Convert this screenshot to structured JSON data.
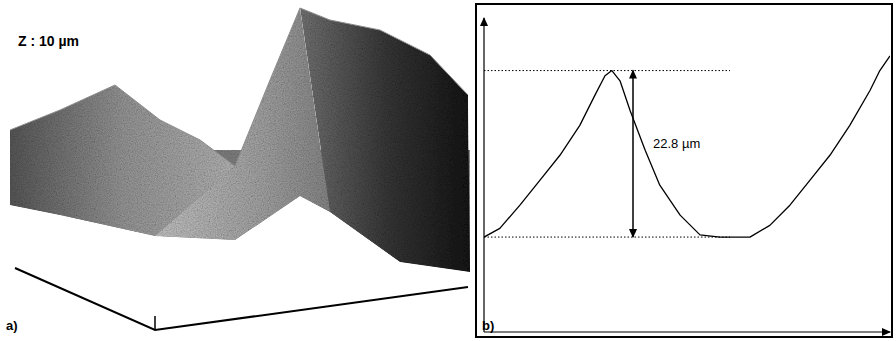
{
  "panel_a": {
    "panel_label": "a)",
    "z_label": "Z : 10 µm"
  },
  "chart_data": {
    "type": "line",
    "panel_label": "b)",
    "x": [
      0,
      3.9,
      8.9,
      13.8,
      18.7,
      23.6,
      27.3,
      29.8,
      31.5,
      33.5,
      36,
      39.7,
      43.3,
      48.3,
      53.2,
      58.1,
      65.5,
      70.4,
      75.4,
      80.3,
      85.2,
      90.1,
      95.1,
      97.5,
      100
    ],
    "values": [
      0,
      1.2,
      4.4,
      7.8,
      11.2,
      15.3,
      19.4,
      22.1,
      22.8,
      21.4,
      17.3,
      11.9,
      7.1,
      3.0,
      0.3,
      0,
      0,
      1.6,
      4.4,
      7.8,
      11.2,
      15.3,
      20.1,
      22.8,
      24.8
    ],
    "xlim": [
      0,
      100
    ],
    "ylim": [
      -13,
      30
    ],
    "tick_labels": false,
    "color": "#000000",
    "annotations": [
      {
        "text": "22.8 µm",
        "from": 0,
        "to": 22.8,
        "x": 36.7
      }
    ]
  }
}
